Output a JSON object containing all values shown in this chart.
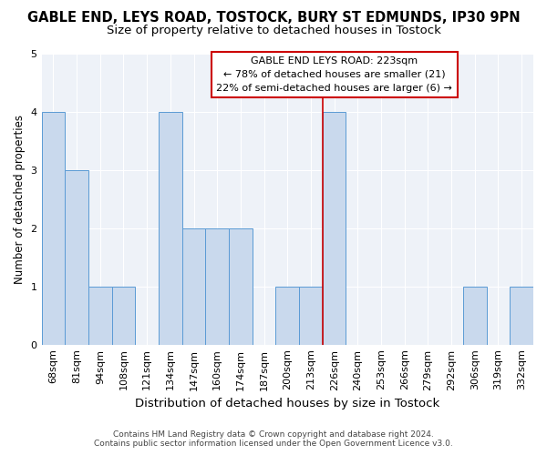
{
  "title1": "GABLE END, LEYS ROAD, TOSTOCK, BURY ST EDMUNDS, IP30 9PN",
  "title2": "Size of property relative to detached houses in Tostock",
  "xlabel": "Distribution of detached houses by size in Tostock",
  "ylabel": "Number of detached properties",
  "categories": [
    "68sqm",
    "81sqm",
    "94sqm",
    "108sqm",
    "121sqm",
    "134sqm",
    "147sqm",
    "160sqm",
    "174sqm",
    "187sqm",
    "200sqm",
    "213sqm",
    "226sqm",
    "240sqm",
    "253sqm",
    "266sqm",
    "279sqm",
    "292sqm",
    "306sqm",
    "319sqm",
    "332sqm"
  ],
  "values": [
    4,
    3,
    1,
    1,
    0,
    4,
    2,
    2,
    2,
    0,
    1,
    1,
    4,
    0,
    0,
    0,
    0,
    0,
    1,
    0,
    1
  ],
  "bar_color": "#c9d9ed",
  "bar_edge_color": "#5b9bd5",
  "vline_color": "#cc0000",
  "annotation_line1": "GABLE END LEYS ROAD: 223sqm",
  "annotation_line2": "← 78% of detached houses are smaller (21)",
  "annotation_line3": "22% of semi-detached houses are larger (6) →",
  "annotation_box_color": "#ffffff",
  "annotation_box_edge": "#cc0000",
  "ylim": [
    0,
    5
  ],
  "yticks": [
    0,
    1,
    2,
    3,
    4,
    5
  ],
  "footer1": "Contains HM Land Registry data © Crown copyright and database right 2024.",
  "footer2": "Contains public sector information licensed under the Open Government Licence v3.0.",
  "bg_color": "#eef2f8",
  "title1_fontsize": 10.5,
  "title2_fontsize": 9.5,
  "xlabel_fontsize": 9.5,
  "ylabel_fontsize": 8.5,
  "tick_fontsize": 8,
  "annotation_fontsize": 8,
  "footer_fontsize": 6.5,
  "vline_x_index": 12
}
